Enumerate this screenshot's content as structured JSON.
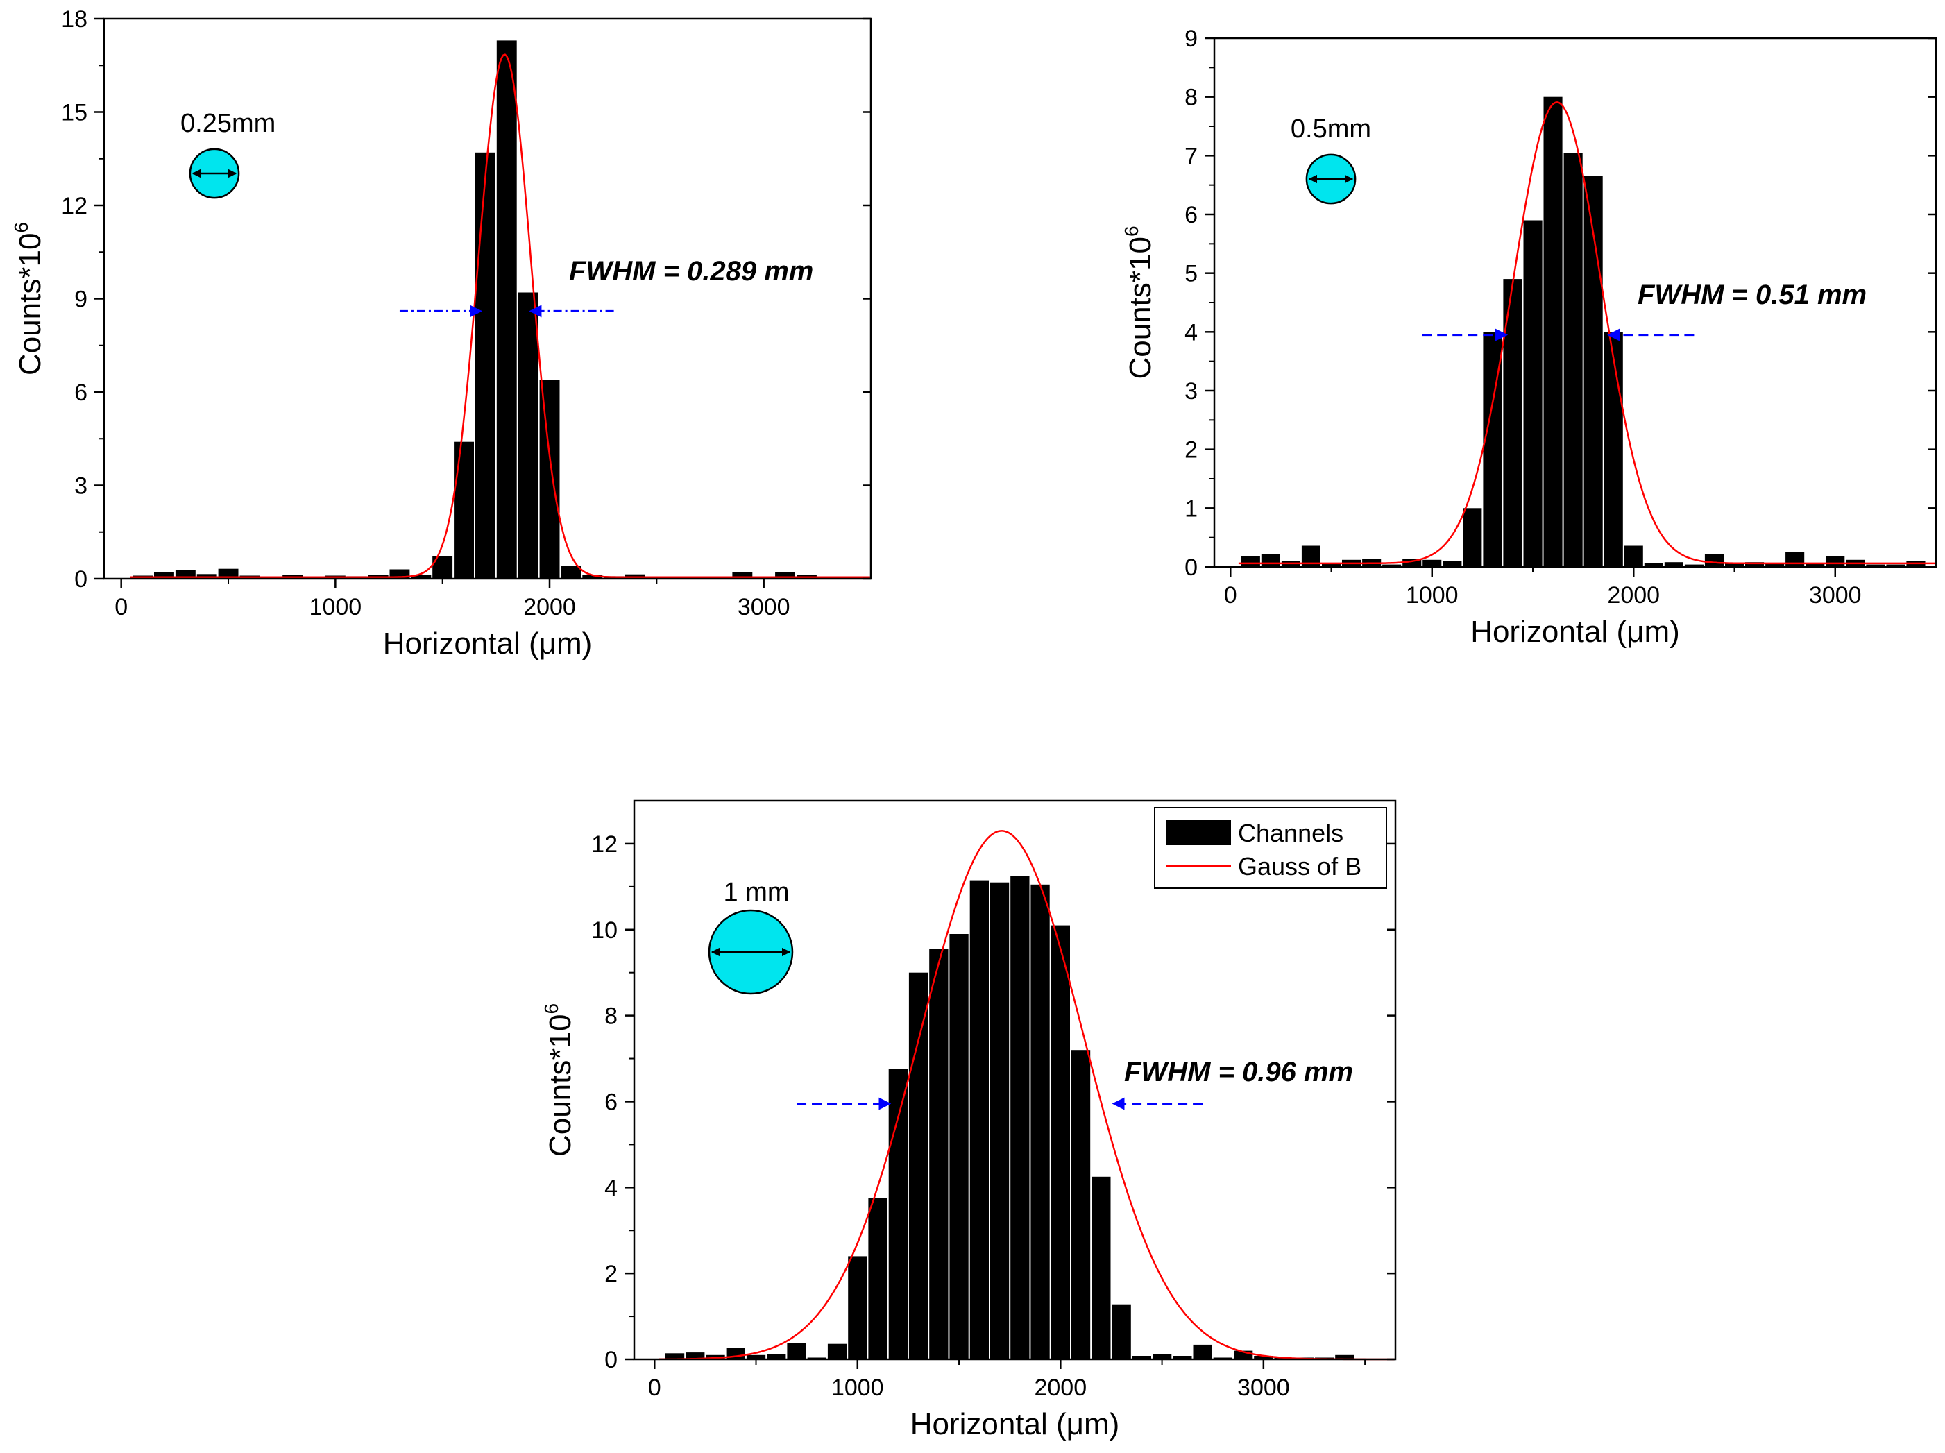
{
  "chart_data": [
    {
      "type": "bar",
      "name": "panel-0.25mm",
      "xlabel": "Horizontal (μm)",
      "ylabel": "Counts*10",
      "ylabel_sup": "6",
      "xlim": [
        -80,
        3500
      ],
      "ylim": [
        0,
        18
      ],
      "xticks": [
        0,
        1000,
        2000,
        3000
      ],
      "yticks": [
        0,
        3,
        6,
        9,
        12,
        15,
        18
      ],
      "bin_width": 100,
      "bars": {
        "x": [
          100,
          200,
          300,
          400,
          500,
          600,
          700,
          800,
          900,
          1000,
          1100,
          1200,
          1300,
          1400,
          1500,
          1600,
          1700,
          1800,
          1900,
          2000,
          2100,
          2200,
          2300,
          2400,
          2500,
          2600,
          2700,
          2800,
          2900,
          3000,
          3100,
          3200,
          3300,
          3400
        ],
        "values": [
          0.1,
          0.22,
          0.28,
          0.15,
          0.32,
          0.1,
          0.06,
          0.12,
          0.06,
          0.1,
          0.08,
          0.12,
          0.3,
          0.12,
          0.72,
          4.4,
          13.7,
          17.3,
          9.2,
          6.4,
          0.42,
          0.12,
          0.08,
          0.14,
          0.06,
          0.04,
          0.06,
          0.04,
          0.22,
          0.04,
          0.2,
          0.12,
          0.04,
          0.04
        ]
      },
      "fit": {
        "mean": 1790,
        "sigma": 123,
        "amplitude": 16.8,
        "baseline": 0.05
      },
      "annotation": {
        "text": "FWHM = 0.289 mm",
        "arrow_y": 8.6,
        "left_tip": 1680,
        "right_tip": 1910,
        "left_start": 1300,
        "right_start": 2300
      },
      "size_label": "0.25mm"
    },
    {
      "type": "bar",
      "name": "panel-0.5mm",
      "xlabel": "Horizontal (μm)",
      "ylabel": "Counts*10",
      "ylabel_sup": "6",
      "xlim": [
        -80,
        3500
      ],
      "ylim": [
        0,
        9
      ],
      "xticks": [
        0,
        1000,
        2000,
        3000
      ],
      "yticks": [
        0,
        1,
        2,
        3,
        4,
        5,
        6,
        7,
        8,
        9
      ],
      "bin_width": 100,
      "bars": {
        "x": [
          100,
          200,
          300,
          400,
          500,
          600,
          700,
          800,
          900,
          1000,
          1100,
          1200,
          1300,
          1400,
          1500,
          1600,
          1700,
          1800,
          1900,
          2000,
          2100,
          2200,
          2300,
          2400,
          2500,
          2600,
          2700,
          2800,
          2900,
          3000,
          3100,
          3200,
          3300,
          3400
        ],
        "values": [
          0.18,
          0.22,
          0.1,
          0.36,
          0.06,
          0.12,
          0.14,
          0.04,
          0.14,
          0.12,
          0.1,
          1.0,
          4.0,
          4.9,
          5.9,
          8.0,
          7.05,
          6.65,
          4.0,
          0.36,
          0.06,
          0.08,
          0.04,
          0.22,
          0.06,
          0.08,
          0.06,
          0.26,
          0.06,
          0.18,
          0.12,
          0.04,
          0.04,
          0.1
        ]
      },
      "fit": {
        "mean": 1620,
        "sigma": 220,
        "amplitude": 7.85,
        "baseline": 0.06
      },
      "annotation": {
        "text": "FWHM = 0.51 mm",
        "arrow_y": 3.95,
        "left_tip": 1370,
        "right_tip": 1875,
        "left_start": 950,
        "right_start": 2300
      },
      "size_label": "0.5mm"
    },
    {
      "type": "bar",
      "name": "panel-1mm",
      "xlabel": "Horizontal (μm)",
      "ylabel": "Counts*10",
      "ylabel_sup": "6",
      "xlim": [
        -100,
        3650
      ],
      "ylim": [
        0,
        13
      ],
      "xticks": [
        0,
        1000,
        2000,
        3000
      ],
      "yticks": [
        0,
        2,
        4,
        6,
        8,
        10,
        12
      ],
      "bin_width": 100,
      "bars": {
        "x": [
          100,
          200,
          300,
          400,
          500,
          600,
          700,
          800,
          900,
          1000,
          1100,
          1200,
          1300,
          1400,
          1500,
          1600,
          1700,
          1800,
          1900,
          2000,
          2100,
          2200,
          2300,
          2400,
          2500,
          2600,
          2700,
          2800,
          2900,
          3000,
          3100,
          3200,
          3300,
          3400
        ],
        "values": [
          0.14,
          0.16,
          0.1,
          0.26,
          0.1,
          0.12,
          0.38,
          0.04,
          0.36,
          2.4,
          3.75,
          6.75,
          9.0,
          9.55,
          9.9,
          11.15,
          11.1,
          11.25,
          11.05,
          10.1,
          7.2,
          4.25,
          1.28,
          0.08,
          0.12,
          0.08,
          0.34,
          0.04,
          0.2,
          0.08,
          0.04,
          0.04,
          0.04,
          0.1
        ]
      },
      "fit": {
        "mean": 1710,
        "sigma": 408,
        "amplitude": 12.3,
        "baseline": 0.0
      },
      "annotation": {
        "text": "FWHM = 0.96 mm",
        "arrow_y": 5.95,
        "left_tip": 1160,
        "right_tip": 2260,
        "left_start": 700,
        "right_start": 2700
      },
      "size_label": "1 mm",
      "legend": [
        {
          "label": "Channels",
          "kind": "bar"
        },
        {
          "label": "Gauss of B",
          "kind": "line"
        }
      ]
    }
  ],
  "colors": {
    "bar": "#000000",
    "fit": "#ff0000",
    "arrow": "#0000ff",
    "beam": "#00e5ee"
  }
}
